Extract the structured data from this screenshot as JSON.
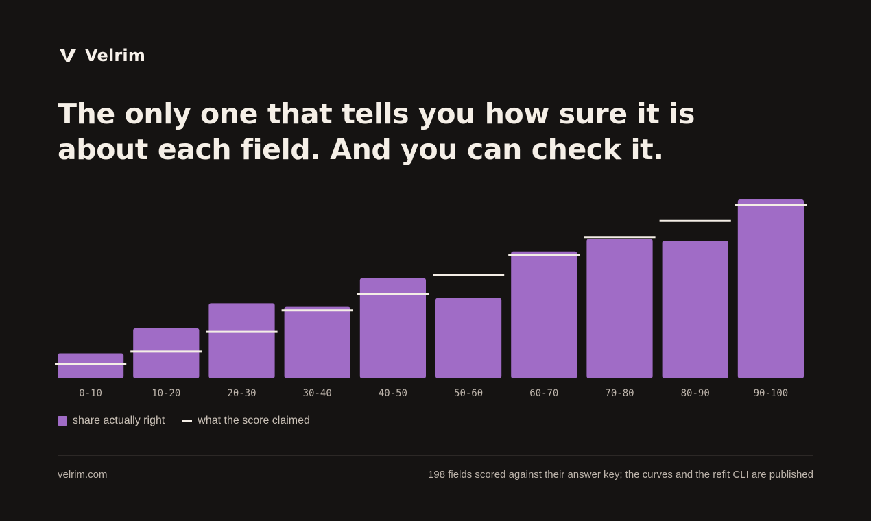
{
  "brand": {
    "name": "Velrim",
    "logo_icon": "velrim-v-logo-icon"
  },
  "headline": {
    "line1": "The only one that tells you how sure it is",
    "line2": "about each field. And you can check it."
  },
  "colors": {
    "bar": "#a06cc6",
    "claimed": "#f4eee6",
    "background": "#151312"
  },
  "legend": {
    "actual": "share actually right",
    "claimed": "what the score claimed"
  },
  "footer": {
    "site": "velrim.com",
    "note": "198 fields scored against their answer key; the curves and the refit CLI are published"
  },
  "chart_data": {
    "type": "bar",
    "categories": [
      "0-10",
      "10-20",
      "20-30",
      "30-40",
      "40-50",
      "50-60",
      "60-70",
      "70-80",
      "80-90",
      "90-100"
    ],
    "series": [
      {
        "name": "share actually right",
        "values": [
          14,
          28,
          42,
          40,
          56,
          45,
          71,
          78,
          77,
          100
        ]
      },
      {
        "name": "what the score claimed",
        "values": [
          8,
          15,
          26,
          38,
          47,
          58,
          69,
          79,
          88,
          97
        ]
      }
    ],
    "ylim": [
      0,
      100
    ],
    "grid": false,
    "legend": "bottom-left"
  }
}
